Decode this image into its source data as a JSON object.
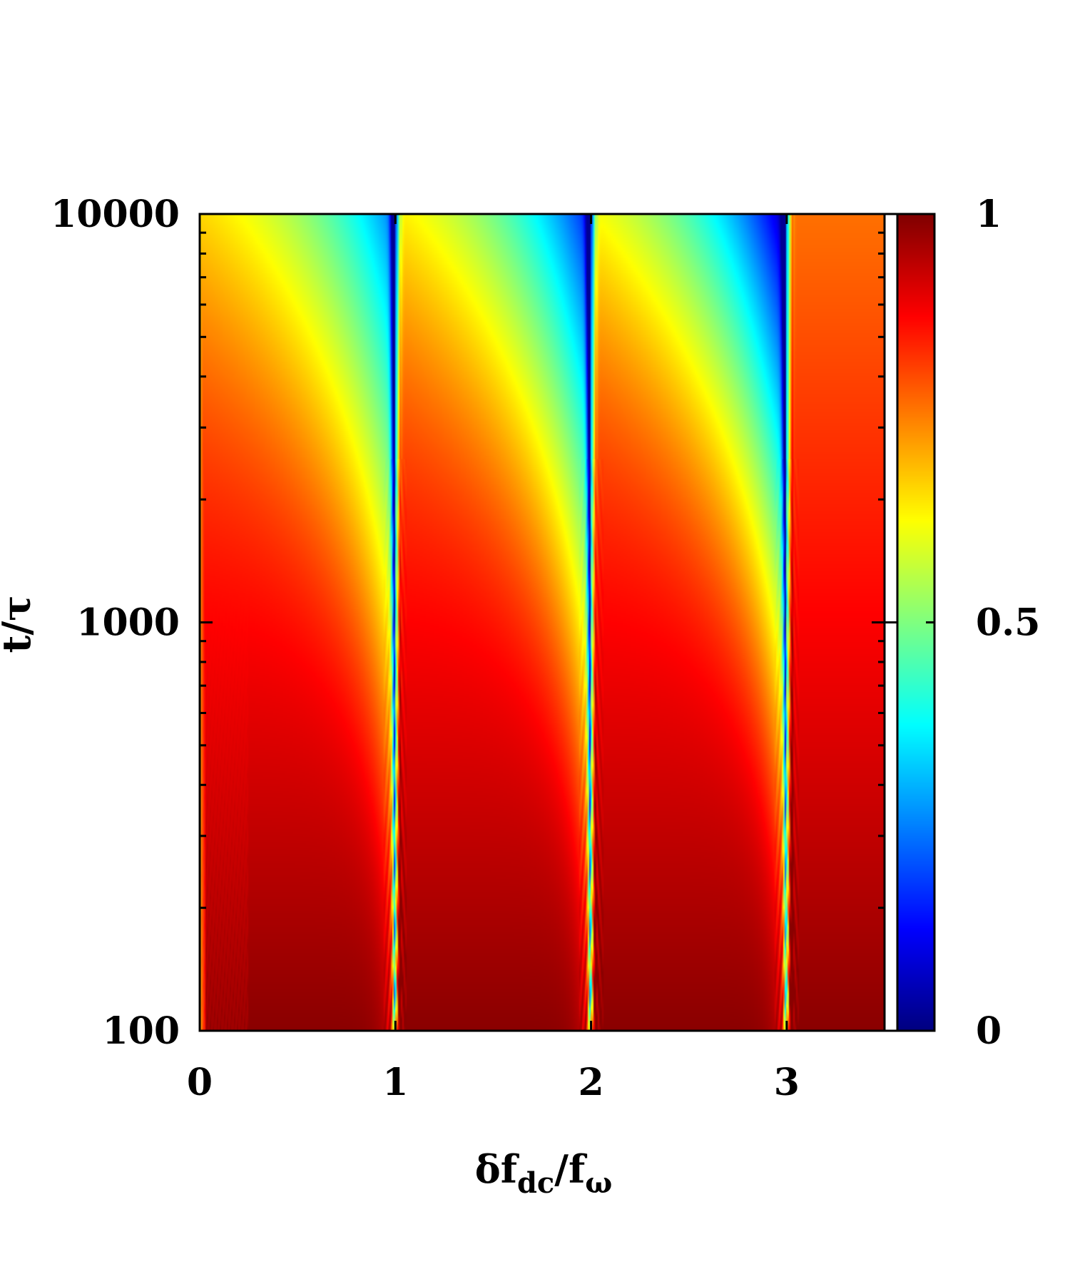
{
  "chart_data": {
    "type": "heatmap",
    "title": "",
    "xlabel_parts": {
      "main": "δf",
      "sub1": "dc",
      "mid": "/f",
      "sub2": "ω"
    },
    "ylabel": "t/τ",
    "xlim": [
      0,
      3.5
    ],
    "ylim": [
      100,
      10000
    ],
    "y_scale": "log",
    "x_ticks": [
      {
        "value": 0,
        "label": "0"
      },
      {
        "value": 1,
        "label": "1"
      },
      {
        "value": 2,
        "label": "2"
      },
      {
        "value": 3,
        "label": "3"
      }
    ],
    "y_ticks": [
      {
        "value": 100,
        "label": "100"
      },
      {
        "value": 1000,
        "label": "1000"
      },
      {
        "value": 10000,
        "label": "10000"
      }
    ],
    "colorbar": {
      "range": [
        0,
        1
      ],
      "ticks": [
        {
          "value": 0,
          "label": "0"
        },
        {
          "value": 0.5,
          "label": "0.5"
        },
        {
          "value": 1,
          "label": "1"
        }
      ],
      "colormap": "jet",
      "colors": [
        "#00007f",
        "#0000ff",
        "#00ffff",
        "#ffff00",
        "#ff0000",
        "#7f0000"
      ]
    },
    "resonances_x": [
      1,
      2,
      3
    ],
    "grid": false,
    "legend": "none"
  }
}
